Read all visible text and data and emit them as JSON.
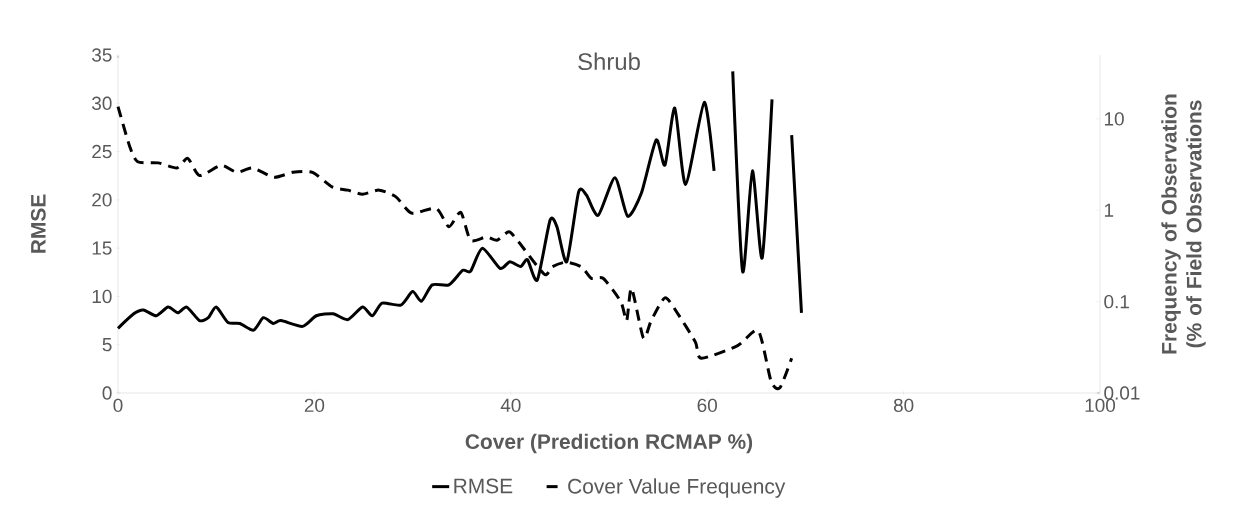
{
  "chart_data": {
    "type": "line",
    "title": "Shrub",
    "xlabel": "Cover (Prediction RCMAP %)",
    "ylabel": "RMSE",
    "y2label": "Frequency of Observation (% of Field Observations",
    "xlim": [
      0,
      100
    ],
    "xticks": [
      0,
      20,
      40,
      60,
      80,
      100
    ],
    "ylim": [
      0,
      35
    ],
    "yticks": [
      0,
      5,
      10,
      15,
      20,
      25,
      30,
      35
    ],
    "y2lim": [
      0.01,
      50
    ],
    "y2ticks": [
      0.01,
      0.1,
      1,
      10
    ],
    "log": "y2",
    "legend": "bottom",
    "series": [
      {
        "name": "RMSE",
        "color": "#000000",
        "line_style": "solid",
        "axis": "y",
        "x": [
          0,
          1.6,
          2.6,
          3.9,
          5.1,
          6.1,
          7.0,
          8.3,
          9.2,
          10.0,
          11.2,
          12.4,
          13.8,
          14.8,
          15.8,
          16.6,
          18.8,
          20.2,
          21.9,
          23.4,
          24.9,
          25.9,
          26.9,
          28.8,
          30.0,
          30.9,
          32.0,
          33.7,
          35.1,
          35.9,
          37.1,
          38.9,
          39.9,
          41.0,
          41.7,
          42.7,
          44.0,
          44.7,
          45.7,
          46.9,
          47.7,
          48.9,
          50.6,
          51.9,
          53.3,
          54.8,
          55.7,
          56.7,
          57.8,
          59.7,
          60.7,
          61.6,
          62.6,
          63.6,
          64.6,
          65.6,
          66.6,
          67.6,
          68.6,
          69.6
        ],
        "values": [
          6.7,
          8.2,
          8.6,
          8.0,
          8.9,
          8.3,
          8.9,
          7.5,
          7.8,
          8.9,
          7.3,
          7.2,
          6.5,
          7.8,
          7.2,
          7.5,
          6.9,
          8.0,
          8.2,
          7.6,
          8.9,
          8.0,
          9.3,
          9.1,
          10.5,
          9.5,
          11.2,
          11.2,
          12.7,
          12.6,
          15.0,
          12.9,
          13.6,
          13.1,
          13.8,
          11.7,
          17.9,
          17.2,
          13.6,
          20.8,
          20.5,
          18.4,
          22.3,
          18.3,
          20.7,
          26.2,
          23.6,
          29.5,
          21.6,
          30.1,
          23.0,
          null,
          33.3,
          12.6,
          23.0,
          14.0,
          30.4,
          null,
          26.7,
          8.3
        ]
      },
      {
        "name": "Cover Value Frequency",
        "color": "#000000",
        "line_style": "dashed",
        "axis": "y2",
        "x": [
          0,
          1.2,
          2.0,
          4.1,
          6.0,
          7.1,
          8.3,
          10.5,
          12.1,
          13.7,
          15.9,
          17.8,
          19.8,
          21.8,
          23.4,
          24.9,
          26.6,
          28.3,
          29.9,
          32.4,
          33.7,
          34.9,
          35.9,
          37.5,
          38.6,
          39.8,
          40.8,
          43.4,
          44.2,
          45.6,
          47.2,
          48.2,
          49.4,
          51.2,
          51.8,
          52.3,
          53.5,
          54.3,
          55.7,
          57.0,
          58.8,
          59.4,
          63.1,
          65.2,
          66.5,
          67.4,
          68.6
        ],
        "values": [
          13.6,
          4.96,
          3.4,
          3.3,
          2.9,
          3.7,
          2.4,
          3.1,
          2.6,
          2.9,
          2.3,
          2.6,
          2.6,
          1.8,
          1.66,
          1.5,
          1.66,
          1.4,
          0.93,
          1.05,
          0.66,
          0.95,
          0.47,
          0.51,
          0.47,
          0.58,
          0.45,
          0.2,
          0.24,
          0.27,
          0.24,
          0.18,
          0.18,
          0.1,
          0.062,
          0.14,
          0.04,
          0.062,
          0.11,
          0.074,
          0.036,
          0.024,
          0.033,
          0.048,
          0.0135,
          0.0114,
          0.024
        ]
      }
    ]
  }
}
